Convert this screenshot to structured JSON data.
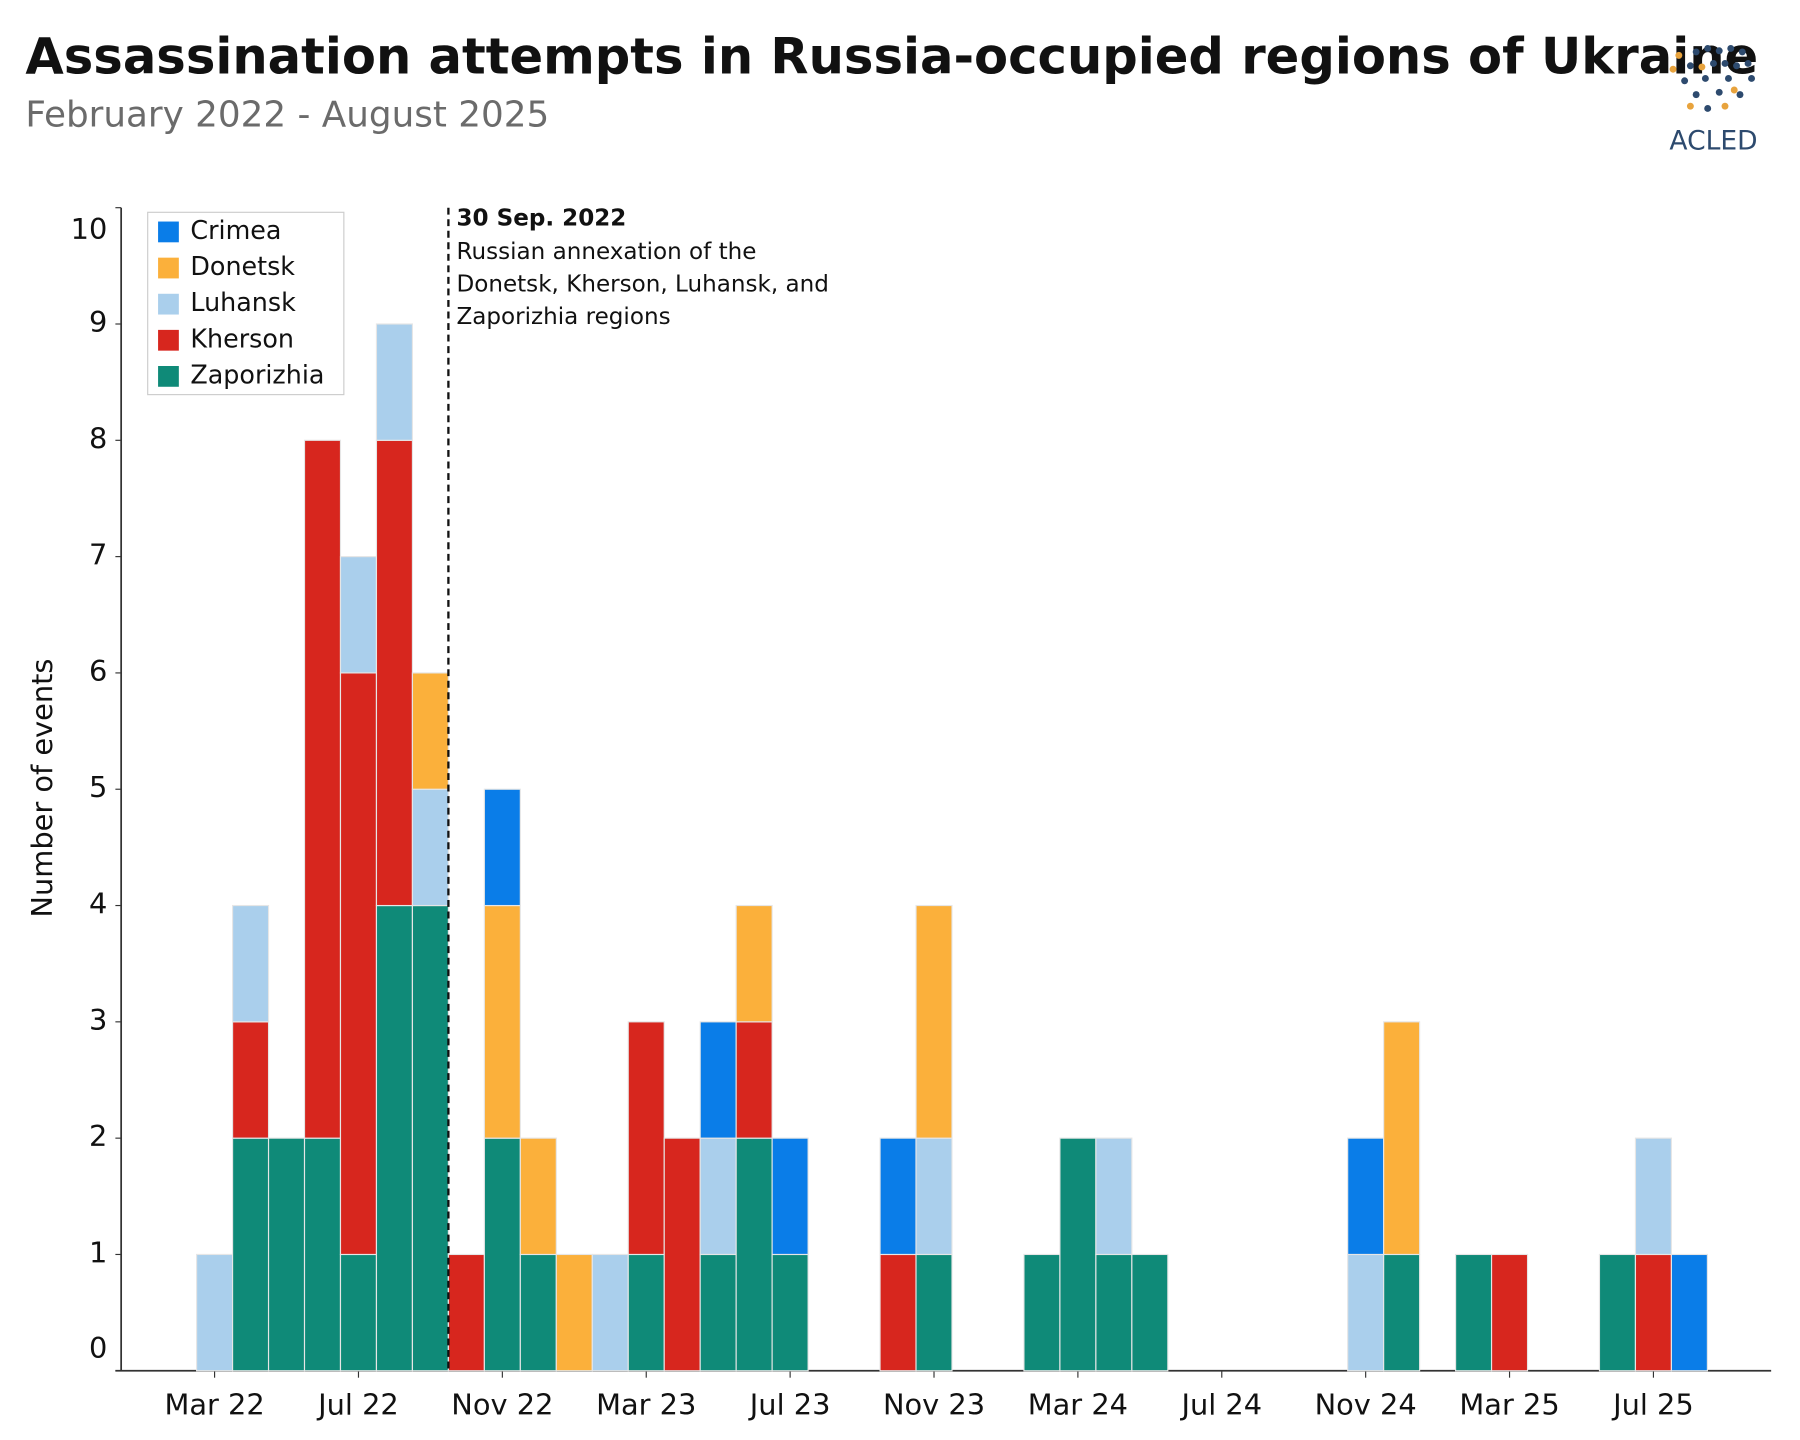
{
  "chart_data": {
    "type": "stacked-bar",
    "title": "Assassination attempts in Russia-occupied regions of Ukraine",
    "subtitle": "February 2022 - August 2025",
    "y_label": "Number of events",
    "logo_text": "ACLED",
    "categories": [
      null,
      "Mar 22",
      null,
      null,
      null,
      "Jul 22",
      null,
      null,
      null,
      "Nov 22",
      null,
      null,
      null,
      "Mar 23",
      null,
      null,
      null,
      "Jul 23",
      null,
      null,
      null,
      "Nov 23",
      null,
      null,
      null,
      "Mar 24",
      null,
      null,
      null,
      "Jul 24",
      null,
      null,
      null,
      "Nov 24",
      null,
      null,
      null,
      "Mar 25",
      null,
      null,
      null,
      "Jul 25",
      null
    ],
    "series": [
      {
        "name": "Crimea",
        "color": "#0a7de8",
        "values": [
          0,
          0,
          0,
          0,
          0,
          0,
          0,
          0,
          0,
          1,
          0,
          0,
          0,
          0,
          0,
          1,
          0,
          1,
          0,
          0,
          1,
          0,
          0,
          0,
          0,
          0,
          0,
          0,
          0,
          0,
          0,
          0,
          0,
          1,
          0,
          0,
          0,
          0,
          0,
          0,
          0,
          0,
          1
        ]
      },
      {
        "name": "Donetsk",
        "color": "#fbb03b",
        "values": [
          0,
          0,
          0,
          0,
          0,
          0,
          0,
          1,
          0,
          2,
          1,
          1,
          0,
          0,
          0,
          0,
          1,
          0,
          0,
          0,
          0,
          2,
          0,
          0,
          0,
          0,
          0,
          0,
          0,
          0,
          0,
          0,
          0,
          0,
          2,
          0,
          0,
          0,
          0,
          0,
          0,
          0,
          0
        ]
      },
      {
        "name": "Luhansk",
        "color": "#aacfec",
        "values": [
          0,
          1,
          1,
          0,
          0,
          1,
          1,
          1,
          0,
          0,
          0,
          0,
          1,
          0,
          0,
          1,
          0,
          0,
          0,
          0,
          0,
          1,
          0,
          0,
          0,
          0,
          1,
          0,
          0,
          0,
          0,
          0,
          0,
          1,
          0,
          0,
          0,
          0,
          0,
          0,
          0,
          1,
          0
        ]
      },
      {
        "name": "Kherson",
        "color": "#d7261e",
        "values": [
          0,
          0,
          1,
          0,
          6,
          5,
          4,
          0,
          1,
          0,
          0,
          0,
          0,
          2,
          2,
          0,
          1,
          0,
          0,
          0,
          1,
          0,
          0,
          0,
          0,
          0,
          0,
          0,
          0,
          0,
          0,
          0,
          0,
          0,
          0,
          0,
          0,
          1,
          0,
          0,
          0,
          1,
          0
        ]
      },
      {
        "name": "Zaporizhia",
        "color": "#0f8a78",
        "values": [
          0,
          0,
          2,
          2,
          2,
          1,
          4,
          4,
          0,
          2,
          1,
          0,
          0,
          1,
          0,
          1,
          2,
          1,
          0,
          0,
          0,
          1,
          0,
          0,
          1,
          2,
          1,
          1,
          0,
          0,
          0,
          0,
          0,
          0,
          1,
          0,
          1,
          0,
          0,
          0,
          1,
          0,
          0
        ]
      }
    ],
    "ylim": [
      0,
      10
    ],
    "yticks": [
      0,
      1,
      2,
      3,
      4,
      5,
      6,
      7,
      8,
      9,
      10
    ],
    "grid": false,
    "legend": "top-left",
    "annotation": {
      "date": "30 Sep. 2022",
      "lines": [
        "Russian annexation of the",
        "Donetsk, Kherson, Luhansk, and",
        "Zaporizhia regions"
      ]
    }
  }
}
